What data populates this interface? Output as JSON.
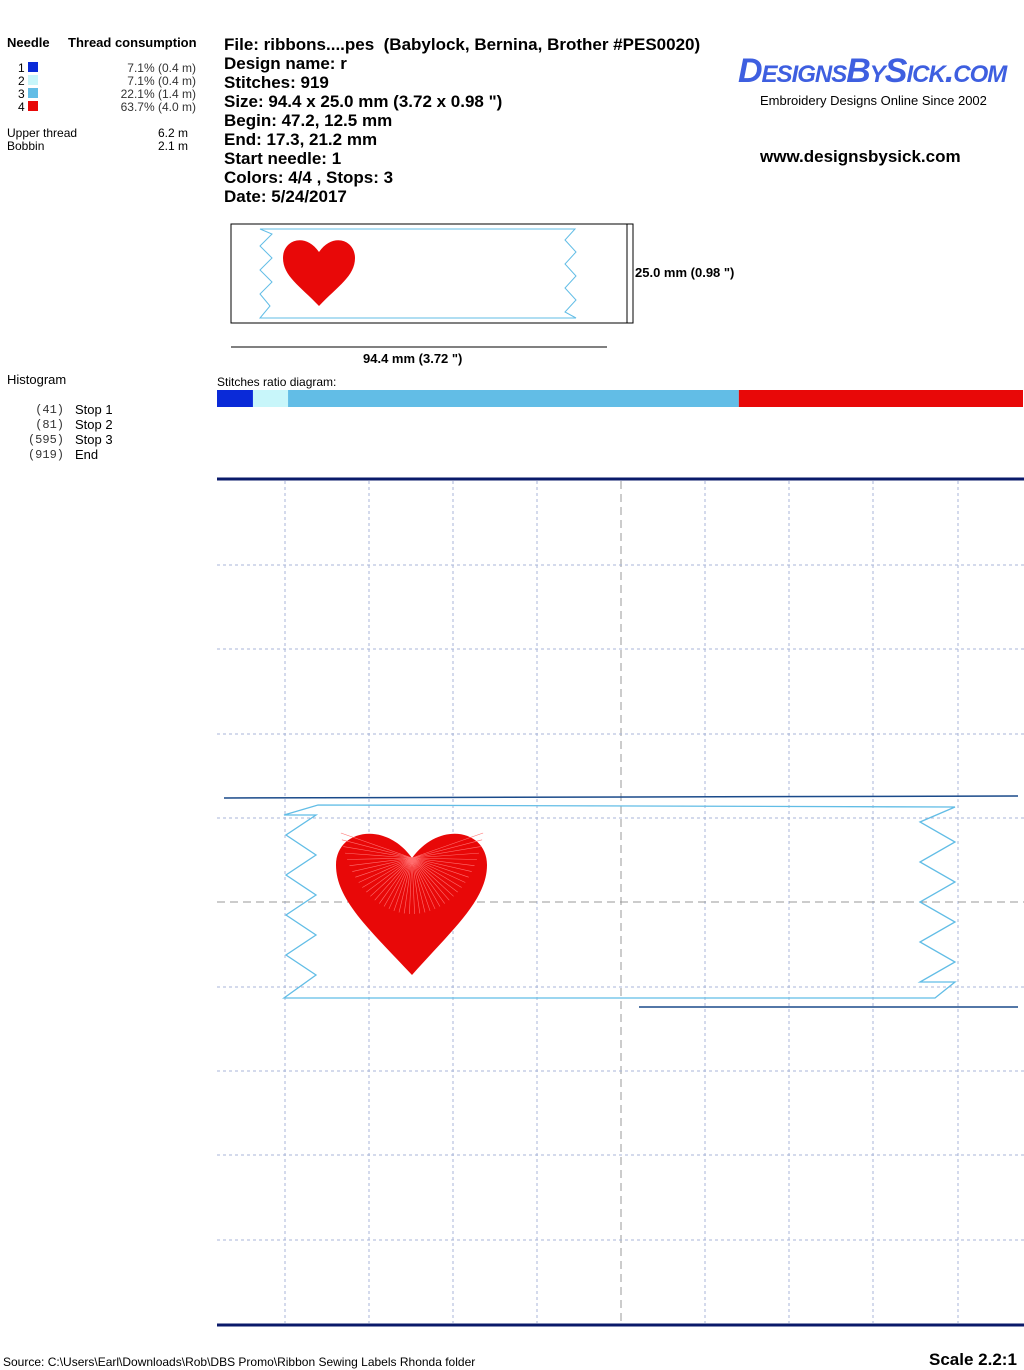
{
  "needles": {
    "header": [
      "Needle",
      "Thread consumption"
    ],
    "rows": [
      {
        "needle": "1",
        "color": "#0a2ad8",
        "consumption": "7.1% (0.4 m)"
      },
      {
        "needle": "2",
        "color": "#c8f6fa",
        "consumption": "7.1% (0.4 m)"
      },
      {
        "needle": "3",
        "color": "#62bde6",
        "consumption": "22.1% (1.4 m)"
      },
      {
        "needle": "4",
        "color": "#e80808",
        "consumption": "63.7% (4.0 m)"
      }
    ]
  },
  "thread": [
    {
      "label": "Upper thread",
      "value": "6.2 m"
    },
    {
      "label": "Bobbin",
      "value": "2.1 m"
    }
  ],
  "info": [
    "File: ribbons....pes  (Babylock, Bernina, Brother #PES0020)",
    "Design name: r",
    "Stitches: 919",
    "Size: 94.4 x 25.0 mm (3.72 x 0.98 \")",
    "Begin: 47.2, 12.5 mm",
    "End: 17.3, 21.2 mm",
    "Start needle: 1",
    "Colors: 4/4 , Stops: 3",
    "Date: 5/24/2017"
  ],
  "logo": {
    "title": "DesignsBySick.com",
    "tagline": "Embroidery Designs Online Since 2002",
    "url": "www.designsbysick.com"
  },
  "preview": {
    "height_label": "25.0 mm (0.98 \")",
    "width_label": "94.4 mm (3.72 \")"
  },
  "histogram": {
    "title": "Histogram",
    "stops": [
      {
        "count": {
          "value": 41,
          "label": "(41)"
        },
        "label": "Stop 1"
      },
      {
        "count": {
          "value": 81,
          "label": "(81)"
        },
        "label": "Stop 2"
      },
      {
        "count": {
          "value": 595,
          "label": "(595)"
        },
        "label": "Stop 3"
      },
      {
        "count": {
          "value": 919,
          "label": "(919)"
        },
        "label": "End"
      }
    ]
  },
  "ratio": {
    "title": "Stitches ratio diagram:"
  },
  "footer": {
    "source": "Source: C:\\Users\\Earl\\Downloads\\Rob\\DBS Promo\\Ribbon Sewing Labels Rhonda folder",
    "scale": "Scale 2.2:1"
  }
}
